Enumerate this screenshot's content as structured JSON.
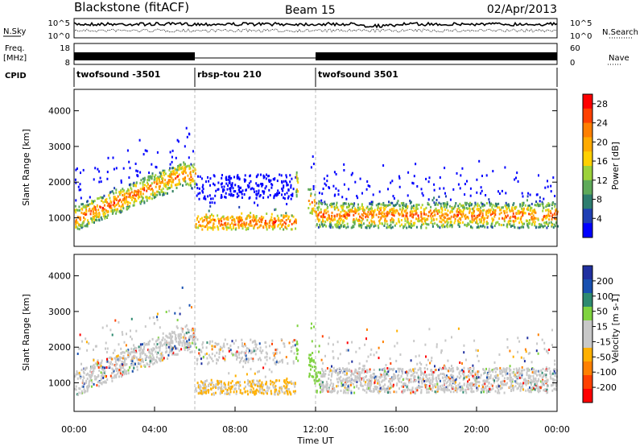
{
  "header": {
    "title": "Blackstone (fitACF)",
    "beam": "Beam 15",
    "date": "02/Apr/2013"
  },
  "side_labels": {
    "nsky": "N.Sky",
    "freq_line1": "Freq.",
    "freq_line2": "[MHz]",
    "cpid": "CPID",
    "nsearch": "N.Search",
    "nave": "Nave"
  },
  "noise_panel": {
    "left_ticks": [
      "10^5",
      "10^0"
    ],
    "right_ticks": [
      "10^5",
      "10^0"
    ]
  },
  "freq_panel": {
    "left_ticks": [
      "18",
      "8"
    ],
    "right_ticks": [
      "60",
      "0"
    ]
  },
  "cpid_segments": [
    {
      "label": "twofsound -3501",
      "start_hour": 0,
      "end_hour": 6
    },
    {
      "label": "rbsp-tou 210",
      "start_hour": 6,
      "end_hour": 12
    },
    {
      "label": "twofsound 3501",
      "start_hour": 12,
      "end_hour": 24
    }
  ],
  "colors": {
    "power_scale": [
      "#0000ff",
      "#1f3fb4",
      "#2e7d6f",
      "#5faa5a",
      "#9cd23a",
      "#ffd000",
      "#ffaa00",
      "#ff7f00",
      "#ff4000",
      "#ff0000"
    ],
    "velocity_scale": [
      "#2030a0",
      "#1850b0",
      "#2e8a70",
      "#7fd33f",
      "#c8c8c8",
      "#c8c8c8",
      "#ffb000",
      "#ff8000",
      "#ff4000",
      "#ff0000"
    ]
  },
  "chart_data": [
    {
      "type": "heatmap",
      "name": "power",
      "ylabel": "Slant Range [km]",
      "y_ticks": [
        "1000",
        "2000",
        "3000",
        "4000"
      ],
      "ylim": [
        200,
        4600
      ],
      "colorbar_label": "Power [dB]",
      "colorbar_ticks": [
        "4",
        "8",
        "12",
        "16",
        "20",
        "24",
        "28"
      ],
      "colorbar_range": [
        0,
        30
      ]
    },
    {
      "type": "heatmap",
      "name": "velocity",
      "ylabel": "Slant Range [km]",
      "y_ticks": [
        "1000",
        "2000",
        "3000",
        "4000"
      ],
      "ylim": [
        200,
        4600
      ],
      "colorbar_label": "Velocity [m s-1]",
      "colorbar_ticks": [
        "200",
        "100",
        "50",
        "15",
        "-15",
        "-50",
        "-100",
        "-200"
      ]
    }
  ],
  "x_axis": {
    "label": "Time UT",
    "ticks": [
      "00:00",
      "04:00",
      "08:00",
      "12:00",
      "16:00",
      "20:00",
      "00:00"
    ],
    "xlim_hours": [
      0,
      24
    ]
  }
}
